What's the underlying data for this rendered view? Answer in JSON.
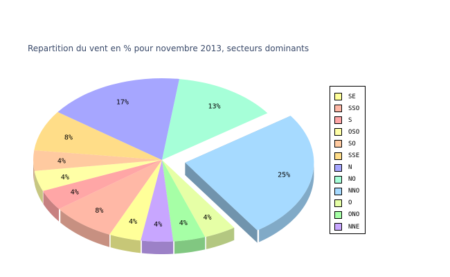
{
  "chart_data": {
    "type": "pie",
    "title": "Repartition du vent en % pour novembre 2013, secteurs dominants",
    "slices": [
      {
        "label": "NNO",
        "value": 25,
        "display": "25%",
        "color": "#a6daff",
        "exploded": true
      },
      {
        "label": "O",
        "value": 4,
        "display": "4%",
        "color": "#e6ffa6"
      },
      {
        "label": "ONO",
        "value": 4,
        "display": "4%",
        "color": "#a6ffa6"
      },
      {
        "label": "NNE",
        "value": 4,
        "display": "4%",
        "color": "#c8a6ff"
      },
      {
        "label": "SE",
        "value": 4,
        "display": "4%",
        "color": "#ffff99"
      },
      {
        "label": "SSO",
        "value": 8,
        "display": "8%",
        "color": "#ffb8a6"
      },
      {
        "label": "S",
        "value": 4,
        "display": "4%",
        "color": "#ffa6a6"
      },
      {
        "label": "OSO",
        "value": 4,
        "display": "4%",
        "color": "#ffffa6"
      },
      {
        "label": "SO",
        "value": 4,
        "display": "4%",
        "color": "#ffcaa0"
      },
      {
        "label": "SSE",
        "value": 8,
        "display": "8%",
        "color": "#ffdd88"
      },
      {
        "label": "N",
        "value": 17,
        "display": "17%",
        "color": "#a6a6ff"
      },
      {
        "label": "NO",
        "value": 13,
        "display": "13%",
        "color": "#a6ffd8"
      }
    ],
    "legend": {
      "placement": "right",
      "items": [
        {
          "label": "SE",
          "color": "#ffff99"
        },
        {
          "label": "SSO",
          "color": "#ffb8a6"
        },
        {
          "label": "S",
          "color": "#ffa6a6"
        },
        {
          "label": "OSO",
          "color": "#ffffa6"
        },
        {
          "label": "SO",
          "color": "#ffcaa0"
        },
        {
          "label": "SSE",
          "color": "#ffdd88"
        },
        {
          "label": "N",
          "color": "#a6a6ff"
        },
        {
          "label": "NO",
          "color": "#a6ffd8"
        },
        {
          "label": "NNO",
          "color": "#a6daff"
        },
        {
          "label": "O",
          "color": "#e6ffa6"
        },
        {
          "label": "ONO",
          "color": "#a6ffa6"
        },
        {
          "label": "NNE",
          "color": "#c8a6ff"
        }
      ]
    }
  }
}
